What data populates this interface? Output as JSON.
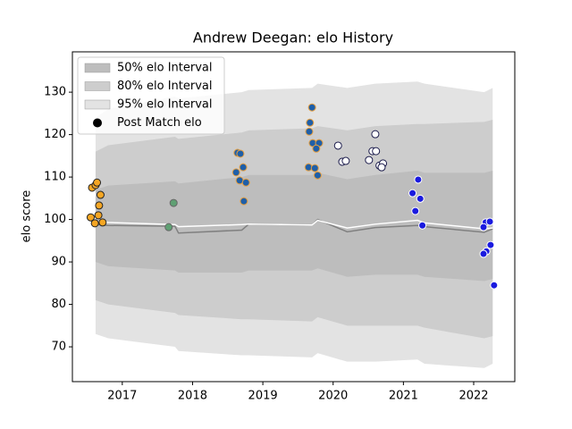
{
  "chart_data": {
    "type": "scatter",
    "title": "Andrew Deegan: elo History",
    "ylabel": "elo score",
    "xlim": [
      2016.29,
      2022.585
    ],
    "ylim": [
      61.8,
      139.5
    ],
    "xticks": [
      2017,
      2018,
      2019,
      2020,
      2021,
      2022
    ],
    "yticks": [
      70,
      80,
      90,
      100,
      110,
      120,
      130
    ],
    "grid": false,
    "legend": "upper left",
    "x": [
      2016.62,
      2016.8,
      2017.75,
      2017.8,
      2018.7,
      2018.8,
      2019.7,
      2019.78,
      2020.2,
      2020.6,
      2021.2,
      2021.3,
      2022.15,
      2022.27
    ],
    "bands": [
      {
        "name": "95% elo Interval",
        "color": "#e3e3e3",
        "upper": [
          124,
          126,
          129,
          128.5,
          130,
          130.5,
          131,
          132,
          131,
          132,
          132.5,
          132,
          130,
          131
        ],
        "lower": [
          73,
          72,
          70,
          69,
          68,
          68,
          67.5,
          68.5,
          66.5,
          66.5,
          67,
          66,
          65,
          66
        ]
      },
      {
        "name": "80% elo Interval",
        "color": "#cdcdcd",
        "upper": [
          116,
          117.5,
          119.5,
          119,
          120.5,
          121,
          121.5,
          122,
          121,
          122,
          122.5,
          122.5,
          123,
          123.5
        ],
        "lower": [
          81,
          80,
          78,
          77.5,
          76.5,
          76.5,
          76,
          77,
          75,
          75,
          75,
          74.5,
          72,
          72.5
        ]
      },
      {
        "name": "50% elo Interval",
        "color": "#bdbdbd",
        "upper": [
          107,
          108,
          109,
          108.5,
          110,
          110.5,
          110.5,
          111,
          109.5,
          110.5,
          111.5,
          111,
          111,
          111.5
        ],
        "lower": [
          90,
          89,
          88,
          87.5,
          87.5,
          88,
          88,
          88.5,
          86.5,
          87,
          87,
          86.5,
          85.5,
          86
        ]
      }
    ],
    "lines": [
      {
        "color": "#808080",
        "values": [
          98.8,
          98.6,
          98.4,
          96.8,
          97.5,
          98.9,
          98.7,
          100.0,
          97.1,
          98.1,
          98.6,
          98.3,
          97.0,
          97.8
        ]
      },
      {
        "color": "#ffffff",
        "values": [
          99.5,
          99.3,
          98.8,
          98.3,
          98.8,
          98.9,
          98.7,
          99.8,
          98.0,
          98.9,
          99.8,
          99.2,
          97.8,
          98.0
        ]
      }
    ],
    "points": {
      "name": "Post Match elo",
      "color": "#000000",
      "groups": [
        {
          "color": "#f5a623",
          "edgecolor": "#222222",
          "x": [
            2016.57,
            2016.62,
            2016.64,
            2016.69,
            2016.67,
            2016.66,
            2016.55,
            2016.61,
            2016.72
          ],
          "y": [
            107.5,
            108.1,
            108.7,
            105.8,
            103.3,
            101.0,
            100.5,
            99.1,
            99.3
          ]
        },
        {
          "color": "#5fa073",
          "edgecolor": "#666666",
          "x": [
            2017.73,
            2017.66
          ],
          "y": [
            103.9,
            98.2
          ]
        },
        {
          "color": "#1f5fa8",
          "edgecolor": "#e8a040",
          "x": [
            2018.64,
            2018.68,
            2018.72,
            2018.62,
            2018.67,
            2018.76,
            2018.73,
            2019.7,
            2019.67,
            2019.66,
            2019.71,
            2019.8,
            2019.76,
            2019.65,
            2019.74,
            2019.78
          ],
          "y": [
            115.7,
            115.5,
            112.3,
            111.1,
            109.2,
            108.7,
            104.3,
            126.4,
            122.8,
            120.7,
            118.0,
            118.0,
            116.7,
            112.3,
            112.1,
            110.4
          ]
        },
        {
          "color": "#ffffff",
          "edgecolor": "#1a1a4a",
          "x": [
            2020.07,
            2020.6,
            2020.13,
            2020.18,
            2020.51,
            2020.56,
            2020.61,
            2020.66,
            2020.71,
            2020.69
          ],
          "y": [
            117.4,
            120.1,
            113.6,
            113.8,
            114.0,
            116.1,
            116.1,
            112.7,
            113.2,
            112.3
          ]
        },
        {
          "color": "#1a1adf",
          "edgecolor": "#ffffff",
          "x": [
            2021.21,
            2021.13,
            2021.24,
            2021.17,
            2021.27,
            2022.17,
            2022.23,
            2022.14,
            2022.24,
            2022.18,
            2022.14,
            2022.29
          ],
          "y": [
            109.4,
            106.2,
            104.9,
            102.0,
            98.6,
            99.3,
            99.5,
            98.2,
            94.0,
            92.5,
            91.9,
            84.5
          ]
        }
      ]
    }
  }
}
